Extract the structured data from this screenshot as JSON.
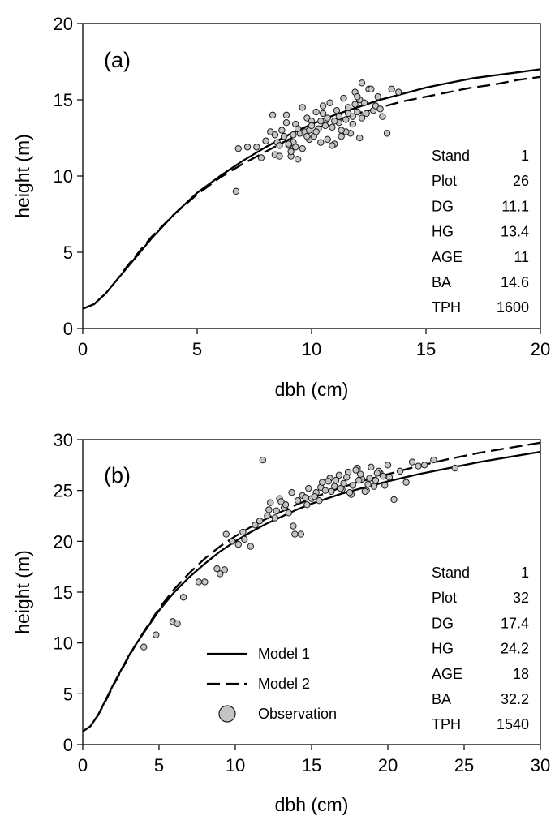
{
  "chart_data": [
    {
      "type": "scatter",
      "panel_label": "(a)",
      "xlabel": "dbh (cm)",
      "ylabel": "height (m)",
      "xlim": [
        0,
        20
      ],
      "ylim": [
        0,
        20
      ],
      "xticks": [
        0,
        5,
        10,
        15,
        20
      ],
      "yticks": [
        0,
        5,
        10,
        15,
        20
      ],
      "grid": false,
      "stats": [
        {
          "label": "Stand",
          "value": "1"
        },
        {
          "label": "Plot",
          "value": "26"
        },
        {
          "label": "DG",
          "value": "11.1"
        },
        {
          "label": "HG",
          "value": "13.4"
        },
        {
          "label": "AGE",
          "value": "11"
        },
        {
          "label": "BA",
          "value": "14.6"
        },
        {
          "label": "TPH",
          "value": "1600"
        }
      ],
      "series": [
        {
          "kind": "line",
          "style": "solid",
          "x": [
            0,
            0.5,
            1,
            1.5,
            2,
            2.5,
            3,
            4,
            5,
            6,
            7,
            8,
            9,
            10,
            11,
            12,
            13,
            14,
            15,
            16,
            17,
            18,
            19,
            20
          ],
          "y": [
            1.3,
            1.6,
            2.3,
            3.2,
            4.1,
            5.0,
            5.9,
            7.5,
            8.9,
            10.0,
            11.0,
            11.9,
            12.7,
            13.4,
            14.0,
            14.5,
            15.0,
            15.4,
            15.8,
            16.1,
            16.4,
            16.6,
            16.8,
            17.0
          ]
        },
        {
          "kind": "line",
          "style": "dashed",
          "x": [
            0,
            0.5,
            1,
            1.5,
            2,
            2.5,
            3,
            4,
            5,
            6,
            7,
            8,
            9,
            10,
            11,
            12,
            13,
            14,
            15,
            16,
            17,
            18,
            19,
            20
          ],
          "y": [
            1.3,
            1.6,
            2.3,
            3.2,
            4.2,
            5.1,
            6.0,
            7.5,
            8.8,
            9.9,
            10.8,
            11.6,
            12.4,
            13.0,
            13.6,
            14.1,
            14.5,
            14.9,
            15.2,
            15.5,
            15.8,
            16.0,
            16.3,
            16.5
          ]
        },
        {
          "kind": "points",
          "x": [
            6.7,
            6.8,
            7.2,
            7.6,
            7.8,
            8.0,
            8.2,
            8.3,
            8.4,
            8.5,
            8.6,
            8.7,
            8.8,
            8.9,
            9.0,
            9.1,
            9.2,
            9.3,
            9.4,
            9.5,
            9.6,
            9.7,
            9.8,
            9.9,
            10.0,
            10.1,
            10.2,
            10.3,
            10.4,
            10.5,
            10.6,
            10.7,
            10.8,
            10.9,
            11.0,
            11.1,
            11.2,
            11.3,
            11.4,
            11.5,
            11.6,
            11.7,
            11.8,
            11.9,
            12.0,
            12.1,
            12.2,
            12.3,
            12.5,
            12.7,
            12.9,
            13.1,
            13.3,
            13.5,
            13.8,
            8.6,
            8.9,
            9.2,
            9.6,
            9.9,
            10.2,
            10.6,
            10.9,
            11.2,
            11.5,
            11.8,
            12.1,
            12.4,
            12.8,
            9.0,
            9.4,
            10.0,
            10.5,
            11.0,
            11.6,
            12.0,
            9.1,
            9.8,
            10.4,
            11.3,
            11.9,
            12.2,
            8.4,
            9.3,
            10.7,
            12.6,
            13.0
          ],
          "y": [
            9.0,
            11.8,
            11.9,
            11.9,
            11.2,
            12.3,
            12.9,
            14.0,
            11.4,
            12.2,
            11.3,
            13.0,
            12.6,
            14.0,
            12.0,
            11.3,
            12.7,
            13.4,
            11.1,
            12.8,
            14.5,
            12.9,
            13.8,
            12.4,
            13.6,
            12.6,
            14.2,
            13.1,
            12.2,
            14.1,
            13.6,
            12.4,
            14.8,
            13.2,
            12.1,
            14.3,
            13.5,
            12.6,
            15.1,
            13.7,
            14.5,
            12.8,
            13.9,
            15.5,
            14.2,
            12.5,
            16.1,
            14.8,
            15.7,
            14.3,
            15.2,
            13.9,
            12.8,
            15.7,
            15.5,
            12.0,
            13.5,
            12.2,
            11.8,
            13.0,
            12.9,
            13.3,
            12.0,
            13.9,
            12.9,
            13.4,
            15.0,
            14.1,
            14.6,
            12.1,
            13.1,
            13.3,
            14.6,
            13.6,
            14.1,
            15.2,
            11.6,
            12.6,
            13.6,
            13.0,
            14.7,
            13.8,
            12.7,
            11.9,
            13.8,
            15.7,
            14.4
          ]
        }
      ]
    },
    {
      "type": "scatter",
      "panel_label": "(b)",
      "xlabel": "dbh (cm)",
      "ylabel": "height (m)",
      "xlim": [
        0,
        30
      ],
      "ylim": [
        0,
        30
      ],
      "xticks": [
        0,
        5,
        10,
        15,
        20,
        25,
        30
      ],
      "yticks": [
        0,
        5,
        10,
        15,
        20,
        25,
        30
      ],
      "grid": false,
      "legend": {
        "placement": "bottom-center",
        "entries": [
          {
            "label": "Model 1",
            "style": "solid"
          },
          {
            "label": "Model 2",
            "style": "dashed"
          },
          {
            "label": "Observation",
            "style": "marker"
          }
        ]
      },
      "stats": [
        {
          "label": "Stand",
          "value": "1"
        },
        {
          "label": "Plot",
          "value": "32"
        },
        {
          "label": "DG",
          "value": "17.4"
        },
        {
          "label": "HG",
          "value": "24.2"
        },
        {
          "label": "AGE",
          "value": "18"
        },
        {
          "label": "BA",
          "value": "32.2"
        },
        {
          "label": "TPH",
          "value": "1540"
        }
      ],
      "series": [
        {
          "kind": "line",
          "style": "solid",
          "x": [
            0,
            0.5,
            1,
            1.5,
            2,
            2.5,
            3,
            3.5,
            4,
            5,
            6,
            7,
            8,
            9,
            10,
            11,
            12,
            13,
            14,
            15,
            16,
            17,
            18,
            19,
            20,
            22,
            24,
            26,
            28,
            30
          ],
          "y": [
            1.3,
            1.8,
            2.9,
            4.4,
            5.9,
            7.3,
            8.7,
            9.9,
            11.0,
            13.2,
            15.0,
            16.5,
            17.8,
            19.0,
            20.0,
            20.9,
            21.7,
            22.4,
            23.1,
            23.7,
            24.2,
            24.7,
            25.1,
            25.5,
            25.9,
            26.6,
            27.2,
            27.8,
            28.3,
            28.8
          ]
        },
        {
          "kind": "line",
          "style": "dashed",
          "x": [
            0,
            0.5,
            1,
            1.5,
            2,
            2.5,
            3,
            3.5,
            4,
            5,
            6,
            7,
            8,
            9,
            10,
            11,
            12,
            13,
            14,
            15,
            16,
            17,
            18,
            19,
            20,
            22,
            24,
            26,
            28,
            30
          ],
          "y": [
            1.3,
            1.8,
            2.9,
            4.3,
            5.8,
            7.2,
            8.6,
            9.9,
            11.1,
            13.4,
            15.3,
            16.9,
            18.3,
            19.5,
            20.5,
            21.4,
            22.2,
            22.9,
            23.6,
            24.2,
            24.8,
            25.3,
            25.8,
            26.2,
            26.6,
            27.4,
            28.1,
            28.7,
            29.2,
            29.7
          ]
        },
        {
          "kind": "points",
          "x": [
            4.0,
            4.8,
            5.9,
            6.2,
            6.6,
            7.6,
            8.0,
            8.8,
            9.0,
            9.3,
            9.4,
            9.8,
            10.2,
            10.5,
            10.6,
            11.0,
            11.3,
            11.6,
            11.8,
            12.1,
            12.3,
            12.6,
            12.9,
            13.2,
            13.5,
            13.8,
            13.9,
            14.1,
            14.4,
            14.7,
            15.0,
            15.3,
            15.6,
            15.9,
            16.2,
            16.5,
            16.8,
            17.1,
            17.4,
            17.7,
            18.0,
            18.3,
            18.6,
            18.9,
            19.2,
            19.5,
            19.8,
            20.1,
            20.4,
            20.8,
            21.2,
            21.6,
            22.0,
            22.4,
            23.0,
            24.4,
            12.2,
            12.7,
            13.3,
            13.7,
            14.3,
            14.8,
            15.2,
            15.7,
            16.3,
            16.6,
            17.0,
            17.3,
            17.6,
            17.9,
            18.2,
            18.5,
            18.8,
            19.1,
            19.4,
            19.7,
            20.0,
            16.1,
            16.9,
            17.5,
            18.1,
            18.7,
            19.3,
            15.5,
            14.6,
            13.0
          ],
          "y": [
            9.6,
            10.8,
            12.1,
            11.9,
            14.5,
            16.0,
            16.0,
            17.3,
            16.8,
            17.2,
            20.7,
            20.0,
            19.7,
            20.9,
            20.2,
            19.5,
            21.6,
            22.0,
            28.0,
            22.5,
            23.8,
            22.3,
            24.2,
            23.3,
            22.8,
            21.5,
            20.7,
            24.0,
            24.5,
            23.6,
            24.2,
            24.8,
            25.3,
            25.0,
            26.2,
            25.4,
            26.5,
            25.7,
            26.8,
            25.5,
            27.2,
            26.1,
            25.0,
            27.3,
            26.0,
            26.7,
            25.5,
            26.3,
            24.1,
            26.9,
            25.8,
            27.8,
            27.4,
            27.5,
            28.0,
            27.2,
            23.1,
            23.0,
            23.6,
            24.8,
            20.7,
            25.2,
            24.4,
            25.8,
            24.9,
            26.0,
            25.1,
            26.3,
            24.6,
            27.0,
            26.6,
            24.9,
            26.2,
            25.4,
            26.9,
            26.4,
            27.5,
            25.9,
            25.2,
            24.8,
            26.0,
            25.6,
            26.7,
            24.0,
            24.3,
            23.9
          ]
        }
      ]
    }
  ]
}
